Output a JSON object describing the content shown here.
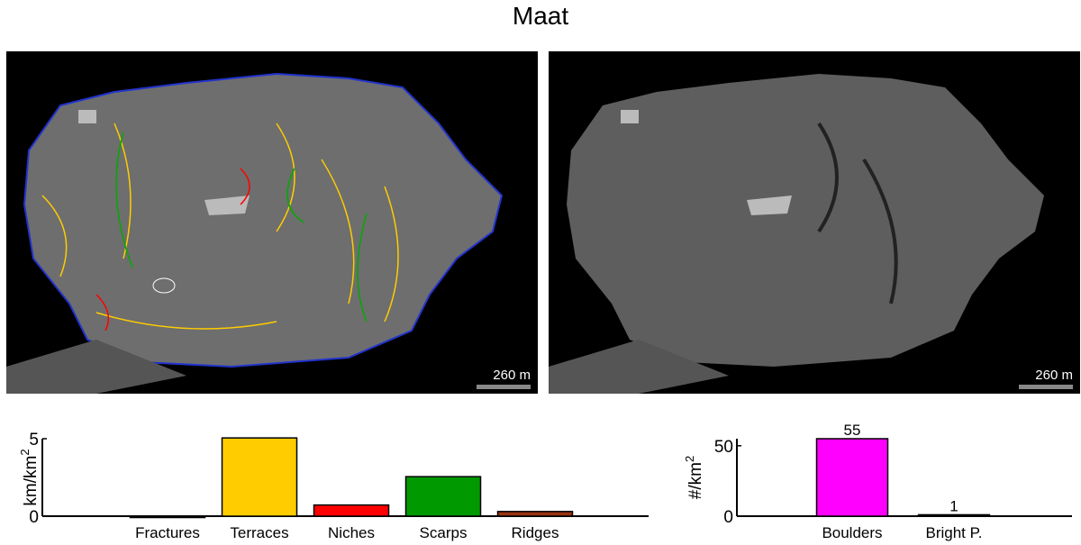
{
  "title": "Maat",
  "images": [
    {
      "name": "annotated-map",
      "scale_label": "260 m"
    },
    {
      "name": "plain-map",
      "scale_label": "260 m"
    }
  ],
  "chart_data": [
    {
      "type": "bar",
      "ylabel": "km/km²",
      "ylabel_base": "km/km",
      "ylabel_sup": "2",
      "categories": [
        "Fractures",
        "Terraces",
        "Niches",
        "Scarps",
        "Ridges"
      ],
      "values": [
        0,
        5.05,
        0.72,
        2.55,
        0.3
      ],
      "colors": [
        "#000000",
        "#ffcc00",
        "#ff0000",
        "#009900",
        "#993311"
      ],
      "ylim": [
        0,
        5
      ],
      "yticks": [
        "0",
        "5"
      ],
      "grid": false
    },
    {
      "type": "bar",
      "ylabel": "#/km²",
      "ylabel_base": "#/km",
      "ylabel_sup": "2",
      "categories": [
        "Boulders",
        "Bright P."
      ],
      "values": [
        55,
        1
      ],
      "data_labels": [
        "55",
        "1"
      ],
      "colors": [
        "#ff00ff",
        "#000000"
      ],
      "ylim": [
        0,
        55
      ],
      "yticks": [
        "0",
        "50"
      ],
      "grid": false
    }
  ]
}
